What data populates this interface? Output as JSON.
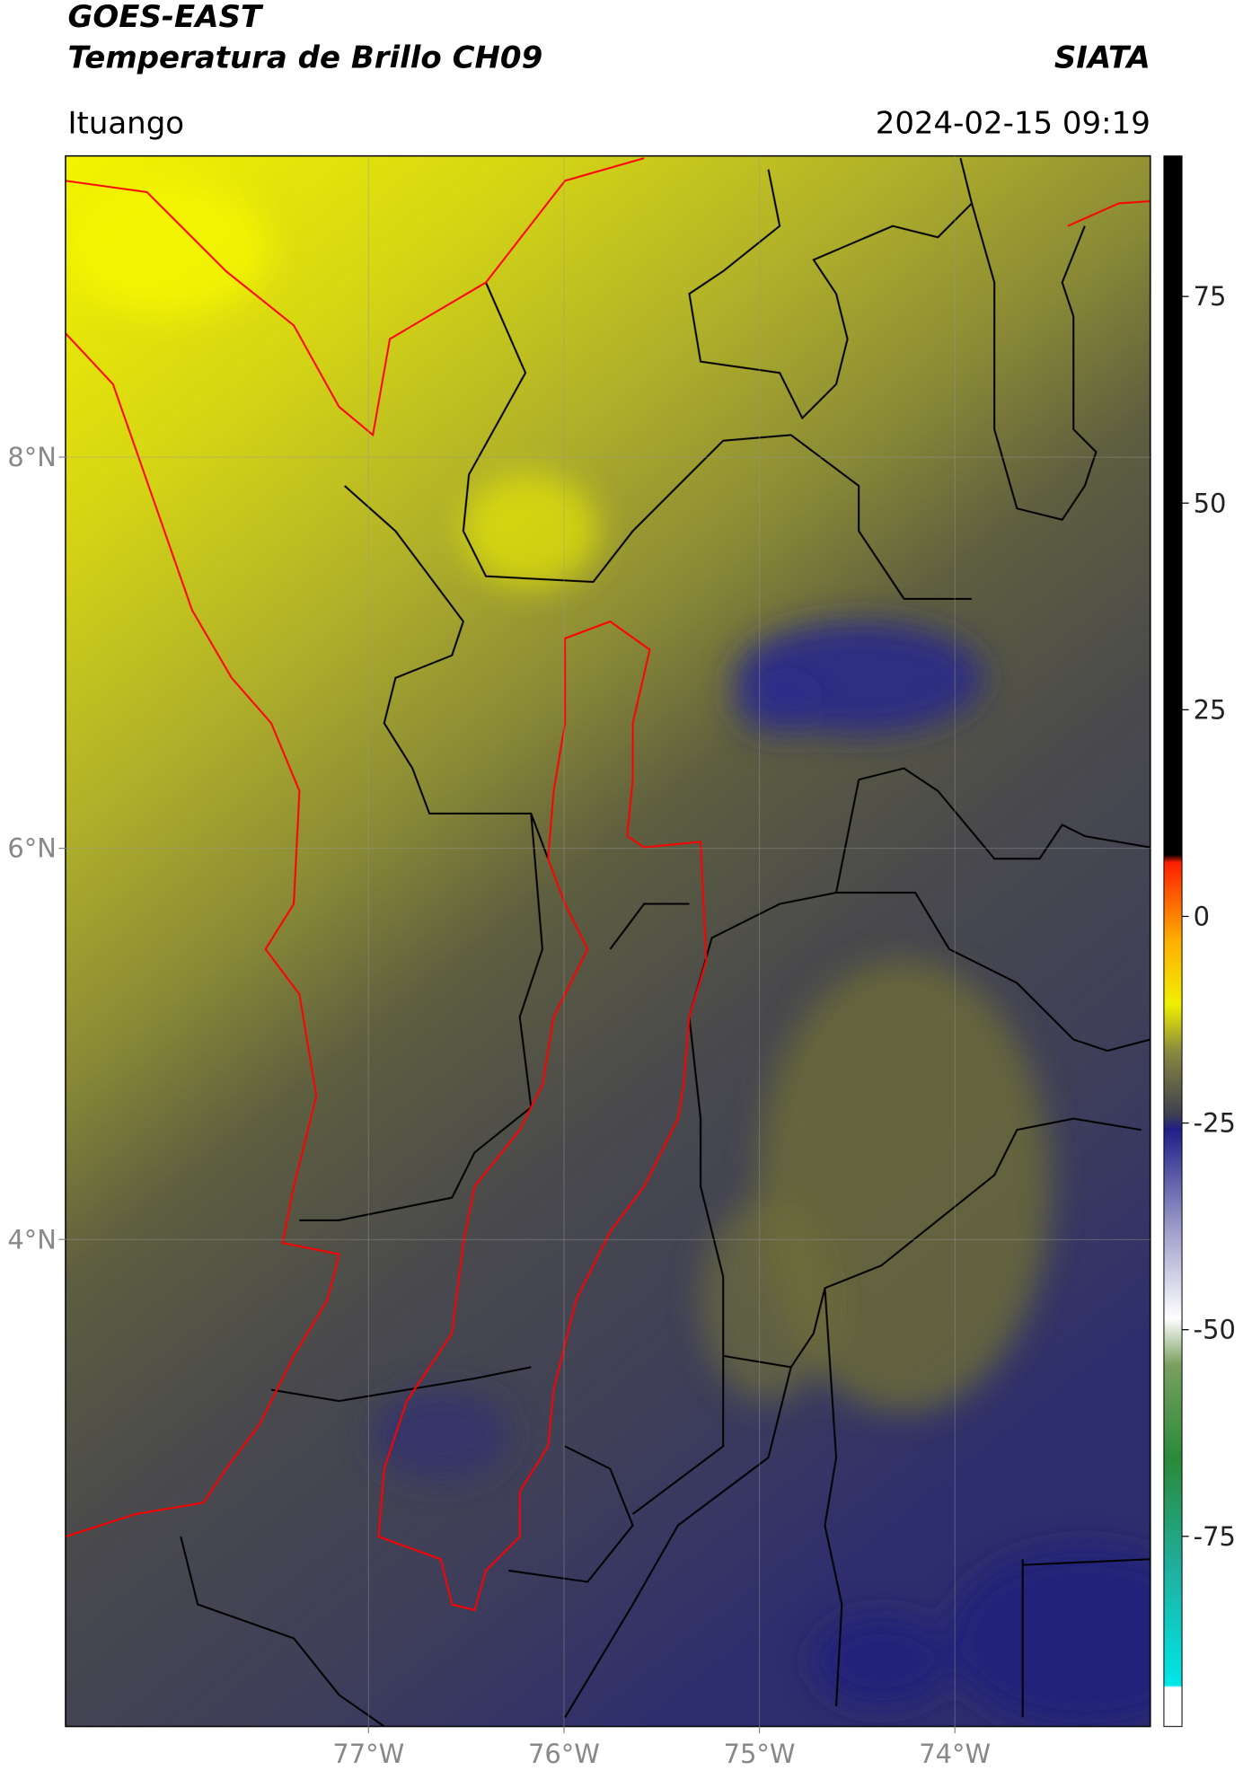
{
  "header": {
    "title": "GOES-EAST",
    "subtitle": "Temperatura de Brillo CH09",
    "source": "SIATA",
    "location": "Ituango",
    "datetime": "2024-02-15 09:19"
  },
  "map": {
    "xlim": [
      -78.55,
      -73.0
    ],
    "ylim": [
      1.51,
      9.54
    ],
    "xticks": [
      {
        "value": -77,
        "label": "77°W"
      },
      {
        "value": -76,
        "label": "76°W"
      },
      {
        "value": -75,
        "label": "75°W"
      },
      {
        "value": -74,
        "label": "74°W"
      }
    ],
    "yticks": [
      {
        "value": 8,
        "label": "8°N"
      },
      {
        "value": 6,
        "label": "6°N"
      },
      {
        "value": 4,
        "label": "4°N"
      }
    ],
    "grid": true
  },
  "colorbar": {
    "lim": [
      -98,
      92
    ],
    "ticks": [
      75,
      50,
      25,
      0,
      -25,
      -50,
      -75
    ]
  }
}
